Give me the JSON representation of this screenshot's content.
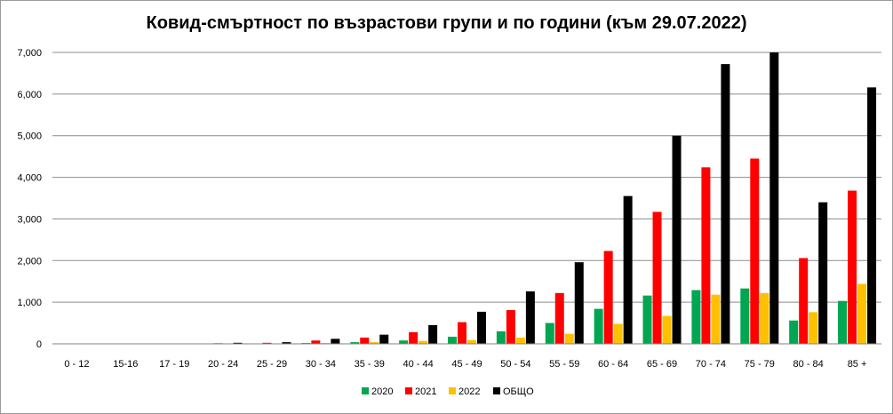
{
  "chart_data": {
    "type": "bar",
    "title": "Ковид-смъртност по възрастови групи и по години (към 29.07.2022)",
    "categories": [
      "0 - 12",
      "15-16",
      "17 - 19",
      "20 - 24",
      "25 - 29",
      "30 - 34",
      "35 - 39",
      "40 - 44",
      "45 - 49",
      "50 - 54",
      "55 - 59",
      "60 - 64",
      "65 - 69",
      "70 - 74",
      "75 - 79",
      "80 - 84",
      "85 +"
    ],
    "ylim": [
      0,
      7000
    ],
    "yticks": [
      "0",
      "1,000",
      "2,000",
      "3,000",
      "4,000",
      "5,000",
      "6,000",
      "7,000"
    ],
    "ytick_values": [
      0,
      1000,
      2000,
      3000,
      4000,
      5000,
      6000,
      7000
    ],
    "grid": true,
    "legend_position": "bottom",
    "series": [
      {
        "name": "2020",
        "color": "#00a651",
        "values": [
          0,
          0,
          0,
          5,
          10,
          20,
          40,
          80,
          170,
          300,
          500,
          840,
          1160,
          1290,
          1330,
          560,
          1030
        ]
      },
      {
        "name": "2021",
        "color": "#ff0000",
        "values": [
          0,
          2,
          3,
          15,
          25,
          80,
          150,
          280,
          520,
          810,
          1220,
          2230,
          3170,
          4240,
          4450,
          2060,
          3680
        ]
      },
      {
        "name": "2022",
        "color": "#ffc000",
        "values": [
          0,
          0,
          0,
          5,
          5,
          20,
          40,
          70,
          90,
          150,
          240,
          480,
          670,
          1180,
          1220,
          760,
          1440
        ]
      },
      {
        "name": "ОБЩО",
        "color": "#000000",
        "values": [
          0,
          2,
          3,
          25,
          40,
          120,
          220,
          450,
          770,
          1260,
          1960,
          3550,
          5000,
          6720,
          7000,
          3400,
          6160
        ]
      }
    ]
  }
}
